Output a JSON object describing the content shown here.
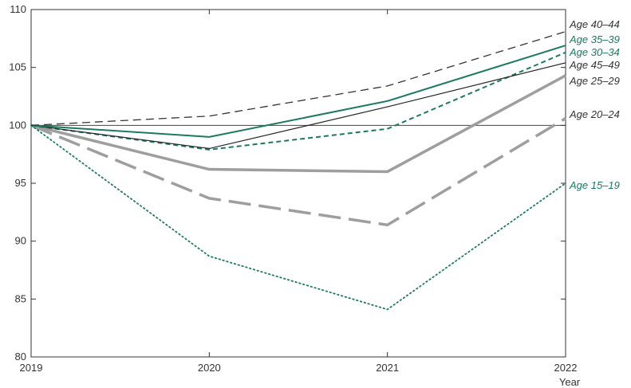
{
  "chart_data": {
    "type": "line",
    "title": "",
    "xlabel": "Year",
    "ylabel": "",
    "x": [
      "2019",
      "2020",
      "2021",
      "2022"
    ],
    "ylim": [
      80,
      110
    ],
    "yticks": [
      "80",
      "85",
      "90",
      "95",
      "100",
      "105",
      "110"
    ],
    "reference_line": 100,
    "grid": false,
    "legend": "direct labels at right end of lines",
    "series": [
      {
        "name": "Age 40–44",
        "values": [
          100,
          100.8,
          103.4,
          108.1
        ],
        "color": "#333333",
        "dash": "dashed-thin",
        "label_color": "#333333"
      },
      {
        "name": "Age 35–39",
        "values": [
          100,
          99.0,
          102.1,
          106.9
        ],
        "color": "#1b7a5f",
        "dash": "solid",
        "label_color": "#1b7a5f"
      },
      {
        "name": "Age 30–34",
        "values": [
          100,
          97.9,
          99.7,
          106.3
        ],
        "color": "#1b7a5f",
        "dash": "dashed",
        "label_color": "#1b7a5f"
      },
      {
        "name": "Age 45–49",
        "values": [
          100,
          98.0,
          101.6,
          105.4
        ],
        "color": "#222222",
        "dash": "solid-thin",
        "label_color": "#333333"
      },
      {
        "name": "Age 25–29",
        "values": [
          100,
          96.2,
          96.0,
          104.3
        ],
        "color": "#9e9e9e",
        "dash": "solid-thick",
        "label_color": "#333333"
      },
      {
        "name": "Age 20–24",
        "values": [
          100,
          93.7,
          91.4,
          100.6
        ],
        "color": "#9e9e9e",
        "dash": "long-dash-thick",
        "label_color": "#333333"
      },
      {
        "name": "Age 15–19",
        "values": [
          100,
          88.7,
          84.1,
          95.0
        ],
        "color": "#1b7a5f",
        "dash": "dotted",
        "label_color": "#1b7a5f"
      }
    ]
  }
}
